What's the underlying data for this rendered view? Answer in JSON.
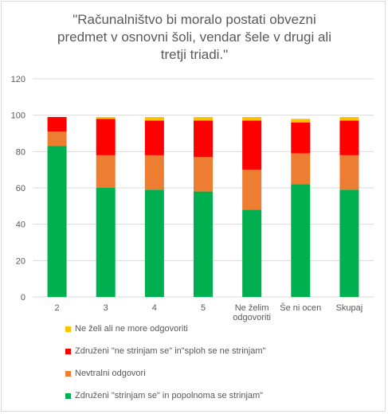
{
  "chart_data": {
    "type": "bar",
    "stacked": true,
    "title": "\"Računalništvo bi moralo postati obvezni predmet v osnovni šoli, vendar šele v drugi ali tretji triadi.\"",
    "title_lines": [
      "\"Računalništvo bi moralo postati obvezni",
      "predmet v osnovni šoli, vendar šele v drugi ali",
      "tretji triadi.\""
    ],
    "categories": [
      {
        "lines": [
          "2"
        ]
      },
      {
        "lines": [
          "3"
        ]
      },
      {
        "lines": [
          "4"
        ]
      },
      {
        "lines": [
          "5"
        ]
      },
      {
        "lines": [
          "Ne želim",
          "odgovoriti"
        ]
      },
      {
        "lines": [
          "Še ni ocen"
        ]
      },
      {
        "lines": [
          "Skupaj"
        ]
      }
    ],
    "ylim": [
      0,
      120
    ],
    "yticks": [
      "0",
      "20",
      "40",
      "60",
      "80",
      "100",
      "120"
    ],
    "grid": true,
    "legend_position": "bottom",
    "series": [
      {
        "name": "Združeni  \"strinjam se\" in popolnoma se strinjam\"",
        "color": "#00b050",
        "values": [
          83,
          60,
          59,
          58,
          48,
          62,
          59
        ]
      },
      {
        "name": "Nevtralni odgovori",
        "color": "#ed7d31",
        "values": [
          8,
          18,
          19,
          19,
          22,
          17,
          19
        ]
      },
      {
        "name": "Združeni  \"ne strinjam se\" in\"sploh se ne strinjam\"",
        "color": "#ff0000",
        "values": [
          8,
          20,
          19,
          20,
          27,
          17,
          19
        ]
      },
      {
        "name": "Ne želi ali ne more odgovoriti",
        "color": "#ffc000",
        "values": [
          0,
          1,
          2,
          2,
          2,
          2,
          2
        ]
      }
    ]
  }
}
